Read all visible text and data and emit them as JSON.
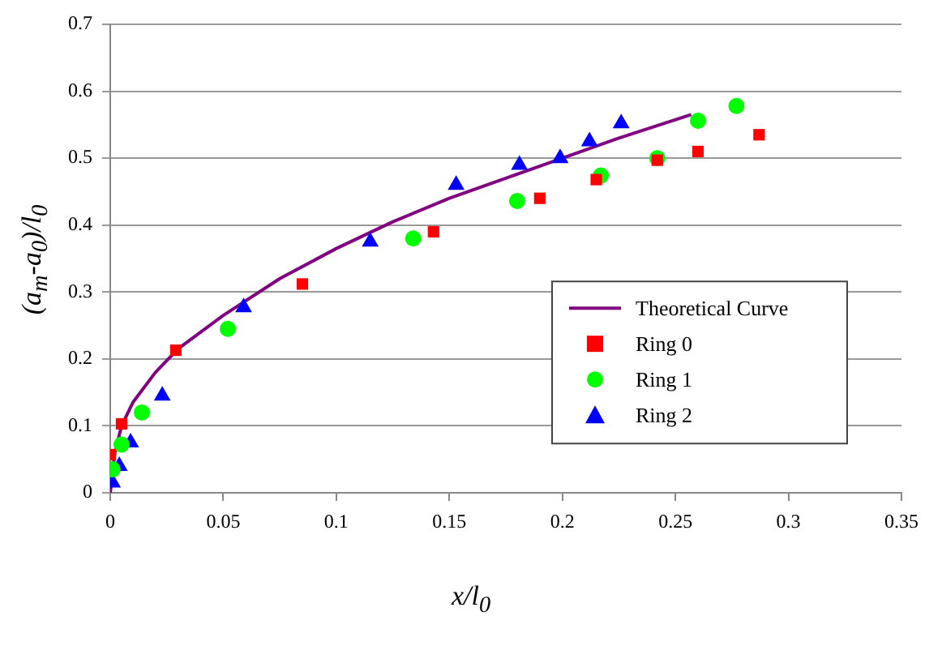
{
  "chart_data": {
    "type": "scatter",
    "xlabel": "x/l$_{0}$",
    "ylabel": "(a$_{m}$-a$_{0}$)/l$_{0}$",
    "xlim": [
      0,
      0.35
    ],
    "xticks": [
      0,
      0.05,
      0.1,
      0.15,
      0.2,
      0.25,
      0.3,
      0.35
    ],
    "ylim": [
      0,
      0.7
    ],
    "yticks": [
      0,
      0.1,
      0.2,
      0.3,
      0.4,
      0.5,
      0.6,
      0.7
    ],
    "grid": "y",
    "legend": "right",
    "series": [
      {
        "name": "Theoretical Curve",
        "type": "line",
        "color": "#800080",
        "marker": "none",
        "line_style": "solid",
        "x": [
          0,
          0.002,
          0.005,
          0.01,
          0.02,
          0.03,
          0.05,
          0.075,
          0.1,
          0.125,
          0.15,
          0.175,
          0.2,
          0.225,
          0.257
        ],
        "values": [
          0,
          0.06,
          0.1,
          0.135,
          0.18,
          0.215,
          0.265,
          0.32,
          0.365,
          0.405,
          0.44,
          0.47,
          0.5,
          0.53,
          0.565
        ]
      },
      {
        "name": "Ring 0",
        "type": "scatter",
        "color": "#ff0000",
        "marker": "square",
        "x": [
          0,
          0.005,
          0.029,
          0.085,
          0.143,
          0.19,
          0.215,
          0.242,
          0.26,
          0.287
        ],
        "values": [
          0.057,
          0.103,
          0.213,
          0.312,
          0.39,
          0.44,
          0.468,
          0.497,
          0.51,
          0.535
        ]
      },
      {
        "name": "Ring 1",
        "type": "scatter",
        "color": "#00ff00",
        "marker": "circle",
        "x": [
          0.001,
          0.005,
          0.014,
          0.052,
          0.134,
          0.18,
          0.217,
          0.242,
          0.26,
          0.277
        ],
        "values": [
          0.035,
          0.072,
          0.12,
          0.245,
          0.38,
          0.436,
          0.474,
          0.5,
          0.556,
          0.578
        ]
      },
      {
        "name": "Ring 2",
        "type": "scatter",
        "color": "#0000ff",
        "marker": "triangle",
        "x": [
          0.001,
          0.004,
          0.009,
          0.023,
          0.059,
          0.115,
          0.153,
          0.181,
          0.199,
          0.212,
          0.226
        ],
        "values": [
          0.015,
          0.04,
          0.075,
          0.145,
          0.277,
          0.375,
          0.46,
          0.49,
          0.5,
          0.525,
          0.552
        ]
      }
    ]
  }
}
